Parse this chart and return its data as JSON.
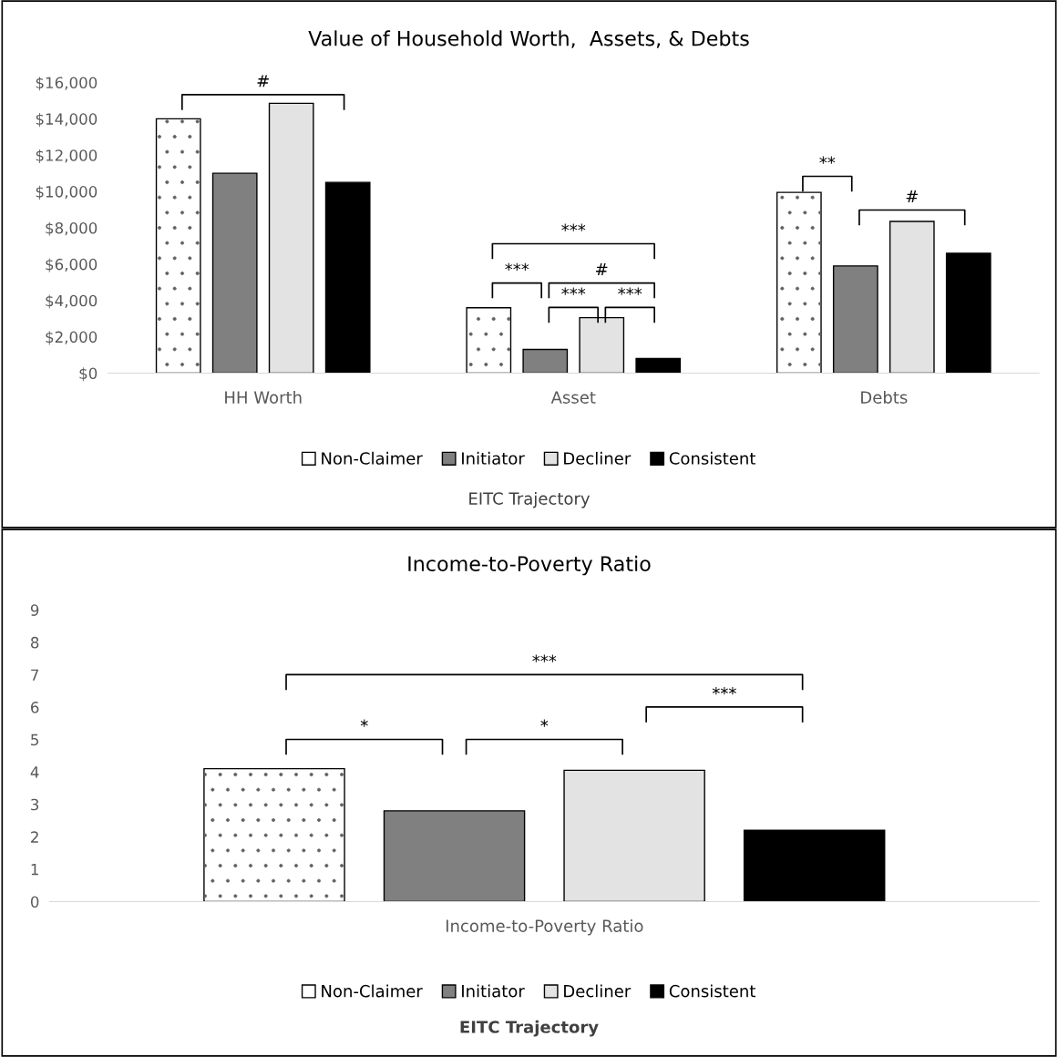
{
  "chart_data": [
    {
      "type": "bar",
      "title": "Value of Household Worth,  Assets, & Debts",
      "categories": [
        "HH Worth",
        "Asset",
        "Debts"
      ],
      "series": [
        {
          "name": "Non-Claimer",
          "color": "#ffffff",
          "values": [
            14000,
            3600,
            9950
          ]
        },
        {
          "name": "Initiator",
          "color": "#808080",
          "values": [
            11000,
            1300,
            5900
          ]
        },
        {
          "name": "Decliner",
          "color": "#e3e3e3",
          "values": [
            14850,
            3050,
            8350
          ]
        },
        {
          "name": "Consistent",
          "color": "#000000",
          "values": [
            10500,
            800,
            6600
          ]
        }
      ],
      "ylim": [
        0,
        16000
      ],
      "yticks": [
        {
          "value": 0,
          "label": "$0"
        },
        {
          "value": 2000,
          "label": "$2,000"
        },
        {
          "value": 4000,
          "label": "$4,000"
        },
        {
          "value": 6000,
          "label": "$6,000"
        },
        {
          "value": 8000,
          "label": "$8,000"
        },
        {
          "value": 10000,
          "label": "$10,000"
        },
        {
          "value": 12000,
          "label": "$12,000"
        },
        {
          "value": 14000,
          "label": "$14,000"
        },
        {
          "value": 16000,
          "label": "$16,000"
        }
      ],
      "legend": "bottom",
      "legend_title": "EITC Trajectory",
      "grid": false,
      "annotations": [
        "#",
        "***",
        "***",
        "#",
        "***",
        "***",
        "**",
        "#"
      ]
    },
    {
      "type": "bar",
      "title": "Income-to-Poverty Ratio",
      "categories": [
        "Income-to-Poverty Ratio"
      ],
      "series": [
        {
          "name": "Non-Claimer",
          "color": "#ffffff",
          "values": [
            4.1
          ]
        },
        {
          "name": "Initiator",
          "color": "#808080",
          "values": [
            2.8
          ]
        },
        {
          "name": "Decliner",
          "color": "#e3e3e3",
          "values": [
            4.05
          ]
        },
        {
          "name": "Consistent",
          "color": "#000000",
          "values": [
            2.2
          ]
        }
      ],
      "ylim": [
        0,
        9
      ],
      "yticks": [
        0,
        1,
        2,
        3,
        4,
        5,
        6,
        7,
        8,
        9
      ],
      "legend": "bottom",
      "legend_title": "EITC Trajectory",
      "grid": false,
      "annotations": [
        "***",
        "*",
        "*",
        "***"
      ]
    }
  ]
}
